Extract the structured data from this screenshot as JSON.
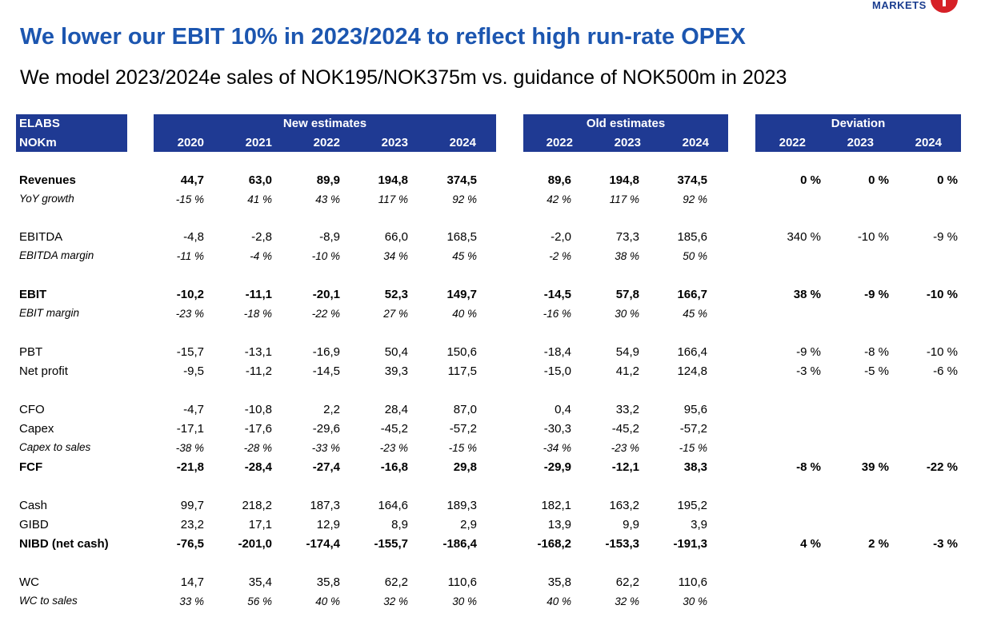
{
  "logo": {
    "text": "MARKETS"
  },
  "title": "We lower our EBIT 10% in 2023/2024 to reflect high run-rate OPEX",
  "subtitle": "We model 2023/2024e sales of NOK195/NOK375m vs. guidance of NOK500m in 2023",
  "table": {
    "corner": [
      "ELABS",
      "NOKm"
    ],
    "groups": {
      "new": {
        "label": "New estimates",
        "years": [
          "2020",
          "2021",
          "2022",
          "2023",
          "2024"
        ]
      },
      "old": {
        "label": "Old estimates",
        "years": [
          "2022",
          "2023",
          "2024"
        ]
      },
      "dev": {
        "label": "Deviation",
        "years": [
          "2022",
          "2023",
          "2024"
        ]
      }
    },
    "rows": [
      {
        "label": "Revenues",
        "style": "bold",
        "new": [
          "44,7",
          "63,0",
          "89,9",
          "194,8",
          "374,5"
        ],
        "old": [
          "89,6",
          "194,8",
          "374,5"
        ],
        "dev": [
          "0 %",
          "0 %",
          "0 %"
        ]
      },
      {
        "label": "YoY growth",
        "style": "italic",
        "new": [
          "-15 %",
          "41 %",
          "43 %",
          "117 %",
          "92 %"
        ],
        "old": [
          "42 %",
          "117 %",
          "92 %"
        ],
        "dev": [
          "",
          "",
          ""
        ]
      },
      {
        "label": "EBITDA",
        "style": "normal",
        "new": [
          "-4,8",
          "-2,8",
          "-8,9",
          "66,0",
          "168,5"
        ],
        "old": [
          "-2,0",
          "73,3",
          "185,6"
        ],
        "dev": [
          "340 %",
          "-10 %",
          "-9 %"
        ]
      },
      {
        "label": "EBITDA margin",
        "style": "italic",
        "new": [
          "-11 %",
          "-4 %",
          "-10 %",
          "34 %",
          "45 %"
        ],
        "old": [
          "-2 %",
          "38 %",
          "50 %"
        ],
        "dev": [
          "",
          "",
          ""
        ]
      },
      {
        "label": "EBIT",
        "style": "bold",
        "new": [
          "-10,2",
          "-11,1",
          "-20,1",
          "52,3",
          "149,7"
        ],
        "old": [
          "-14,5",
          "57,8",
          "166,7"
        ],
        "dev": [
          "38 %",
          "-9 %",
          "-10 %"
        ]
      },
      {
        "label": "EBIT margin",
        "style": "italic",
        "new": [
          "-23 %",
          "-18 %",
          "-22 %",
          "27 %",
          "40 %"
        ],
        "old": [
          "-16 %",
          "30 %",
          "45 %"
        ],
        "dev": [
          "",
          "",
          ""
        ]
      },
      {
        "label": "PBT",
        "style": "normal",
        "new": [
          "-15,7",
          "-13,1",
          "-16,9",
          "50,4",
          "150,6"
        ],
        "old": [
          "-18,4",
          "54,9",
          "166,4"
        ],
        "dev": [
          "-9 %",
          "-8 %",
          "-10 %"
        ]
      },
      {
        "label": "Net profit",
        "style": "normal",
        "new": [
          "-9,5",
          "-11,2",
          "-14,5",
          "39,3",
          "117,5"
        ],
        "old": [
          "-15,0",
          "41,2",
          "124,8"
        ],
        "dev": [
          "-3 %",
          "-5 %",
          "-6 %"
        ]
      },
      {
        "label": "CFO",
        "style": "normal",
        "new": [
          "-4,7",
          "-10,8",
          "2,2",
          "28,4",
          "87,0"
        ],
        "old": [
          "0,4",
          "33,2",
          "95,6"
        ],
        "dev": [
          "",
          "",
          ""
        ]
      },
      {
        "label": "Capex",
        "style": "normal",
        "new": [
          "-17,1",
          "-17,6",
          "-29,6",
          "-45,2",
          "-57,2"
        ],
        "old": [
          "-30,3",
          "-45,2",
          "-57,2"
        ],
        "dev": [
          "",
          "",
          ""
        ]
      },
      {
        "label": "Capex to sales",
        "style": "italic",
        "new": [
          "-38 %",
          "-28 %",
          "-33 %",
          "-23 %",
          "-15 %"
        ],
        "old": [
          "-34 %",
          "-23 %",
          "-15 %"
        ],
        "dev": [
          "",
          "",
          ""
        ]
      },
      {
        "label": "FCF",
        "style": "bold",
        "new": [
          "-21,8",
          "-28,4",
          "-27,4",
          "-16,8",
          "29,8"
        ],
        "old": [
          "-29,9",
          "-12,1",
          "38,3"
        ],
        "dev": [
          "-8 %",
          "39 %",
          "-22 %"
        ]
      },
      {
        "label": "Cash",
        "style": "normal",
        "new": [
          "99,7",
          "218,2",
          "187,3",
          "164,6",
          "189,3"
        ],
        "old": [
          "182,1",
          "163,2",
          "195,2"
        ],
        "dev": [
          "",
          "",
          ""
        ]
      },
      {
        "label": "GIBD",
        "style": "normal",
        "new": [
          "23,2",
          "17,1",
          "12,9",
          "8,9",
          "2,9"
        ],
        "old": [
          "13,9",
          "9,9",
          "3,9"
        ],
        "dev": [
          "",
          "",
          ""
        ]
      },
      {
        "label": "NIBD (net cash)",
        "style": "bold",
        "new": [
          "-76,5",
          "-201,0",
          "-174,4",
          "-155,7",
          "-186,4"
        ],
        "old": [
          "-168,2",
          "-153,3",
          "-191,3"
        ],
        "dev": [
          "4 %",
          "2 %",
          "-3 %"
        ]
      },
      {
        "label": "WC",
        "style": "normal",
        "new": [
          "14,7",
          "35,4",
          "35,8",
          "62,2",
          "110,6"
        ],
        "old": [
          "35,8",
          "62,2",
          "110,6"
        ],
        "dev": [
          "",
          "",
          ""
        ]
      },
      {
        "label": "WC to sales",
        "style": "italic",
        "new": [
          "33 %",
          "56 %",
          "40 %",
          "32 %",
          "30 %"
        ],
        "old": [
          "40 %",
          "32 %",
          "30 %"
        ],
        "dev": [
          "",
          "",
          ""
        ]
      }
    ]
  }
}
